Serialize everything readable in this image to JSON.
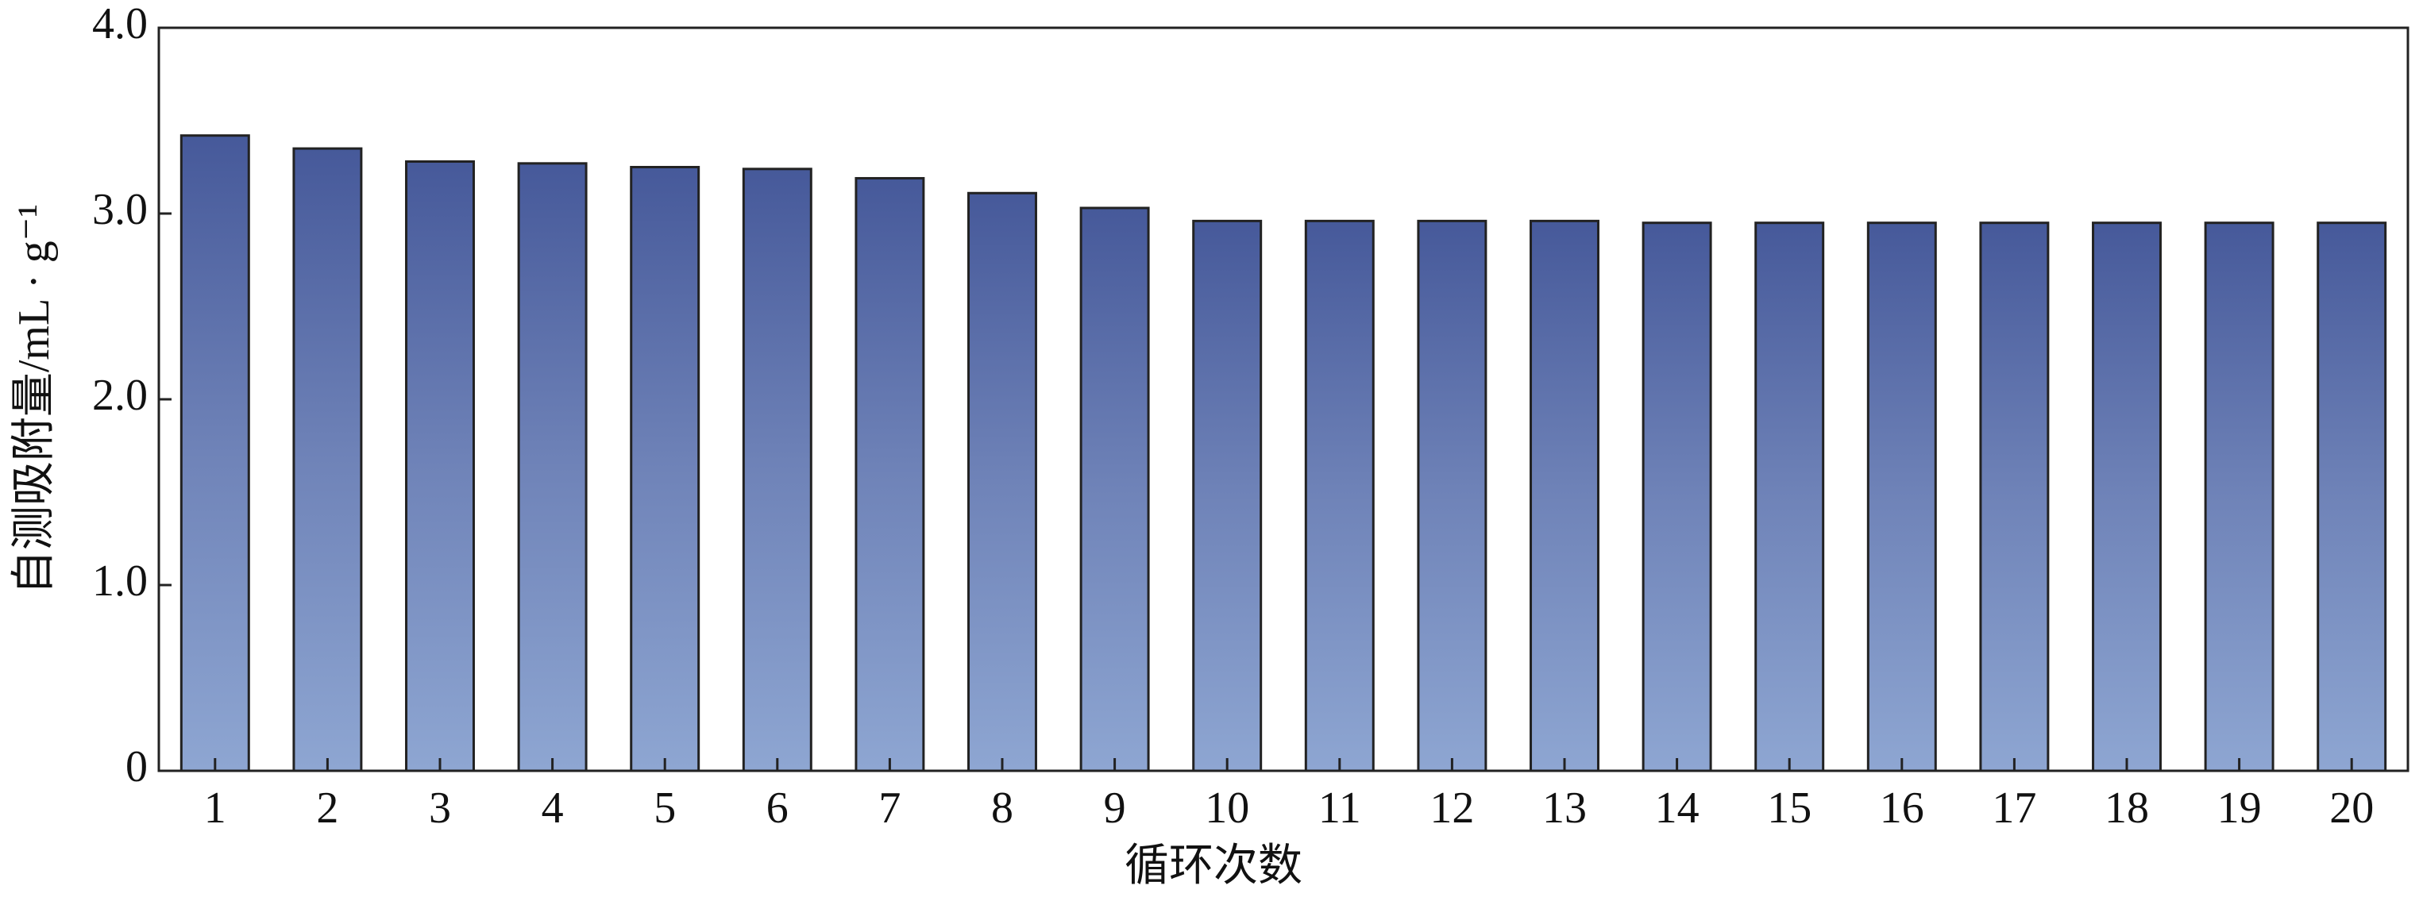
{
  "chart_data": {
    "type": "bar",
    "y_label": "自测吸附量/mL · g⁻¹",
    "x_label": "循环次数",
    "categories": [
      "1",
      "2",
      "3",
      "4",
      "5",
      "6",
      "7",
      "8",
      "9",
      "10",
      "11",
      "12",
      "13",
      "14",
      "15",
      "16",
      "17",
      "18",
      "19",
      "20"
    ],
    "values": [
      3.42,
      3.35,
      3.28,
      3.27,
      3.25,
      3.24,
      3.19,
      3.11,
      3.03,
      2.96,
      2.96,
      2.96,
      2.96,
      2.95,
      2.95,
      2.95,
      2.95,
      2.95,
      2.95,
      2.95
    ],
    "color": "#5468a6",
    "ylim": [
      0,
      4
    ],
    "yticks": [
      0,
      {
        "value": 1,
        "label": "1.0"
      },
      {
        "value": 2,
        "label": "2.0"
      },
      {
        "value": 3,
        "label": "3.0"
      },
      {
        "value": 4,
        "label": "4.0"
      }
    ],
    "grid": false
  }
}
